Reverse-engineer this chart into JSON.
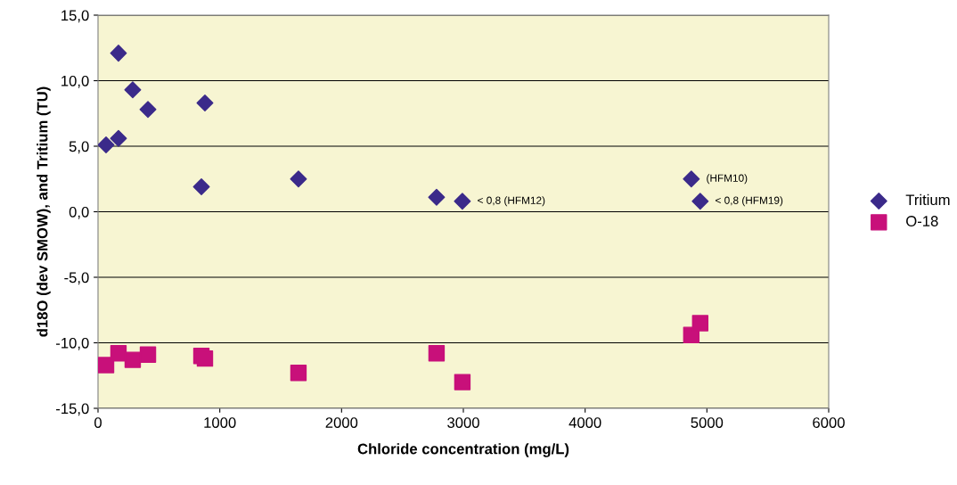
{
  "chart_data": {
    "type": "scatter",
    "xlabel": "Chloride concentration (mg/L)",
    "ylabel": "d18O (dev SMOW), and Tritium (TU)",
    "series": [
      {
        "name": "Tritium",
        "color": "#3b2a8a",
        "marker": "diamond",
        "x": [
          66,
          168,
          168,
          285,
          410,
          878,
          849,
          1646,
          2780,
          2992,
          4872,
          4945
        ],
        "values": [
          5.1,
          12.1,
          5.6,
          9.3,
          7.8,
          8.3,
          1.9,
          2.5,
          1.1,
          0.8,
          2.5,
          0.8
        ]
      },
      {
        "name": "O-18",
        "color": "#c8107a",
        "marker": "square",
        "x": [
          66,
          168,
          285,
          410,
          849,
          878,
          1646,
          2780,
          2992,
          4872,
          4945
        ],
        "values": [
          -11.7,
          -10.8,
          -11.3,
          -10.9,
          -11.0,
          -11.2,
          -12.3,
          -10.8,
          -13.0,
          -9.4,
          -8.5
        ]
      }
    ],
    "annotations": [
      {
        "text": "< 0,8 (HFM12)",
        "x": 2992,
        "y": 0.8
      },
      {
        "text": "(HFM10)",
        "x": 4872,
        "y": 2.5
      },
      {
        "text": "< 0,8 (HFM19)",
        "x": 4945,
        "y": 0.8
      }
    ],
    "xlim": [
      0,
      6000
    ],
    "xticks": [
      0,
      1000,
      2000,
      3000,
      4000,
      5000,
      6000
    ],
    "ylim": [
      -15,
      15
    ],
    "yticks": [
      {
        "value": -15,
        "label": "-15,0"
      },
      {
        "value": -10,
        "label": "-10,0"
      },
      {
        "value": -5,
        "label": "-5,0"
      },
      {
        "value": 0,
        "label": "0,0"
      },
      {
        "value": 5,
        "label": "5,0"
      },
      {
        "value": 10,
        "label": "10,0"
      },
      {
        "value": 15,
        "label": "15,0"
      }
    ],
    "grid": "y",
    "legend": "right"
  }
}
